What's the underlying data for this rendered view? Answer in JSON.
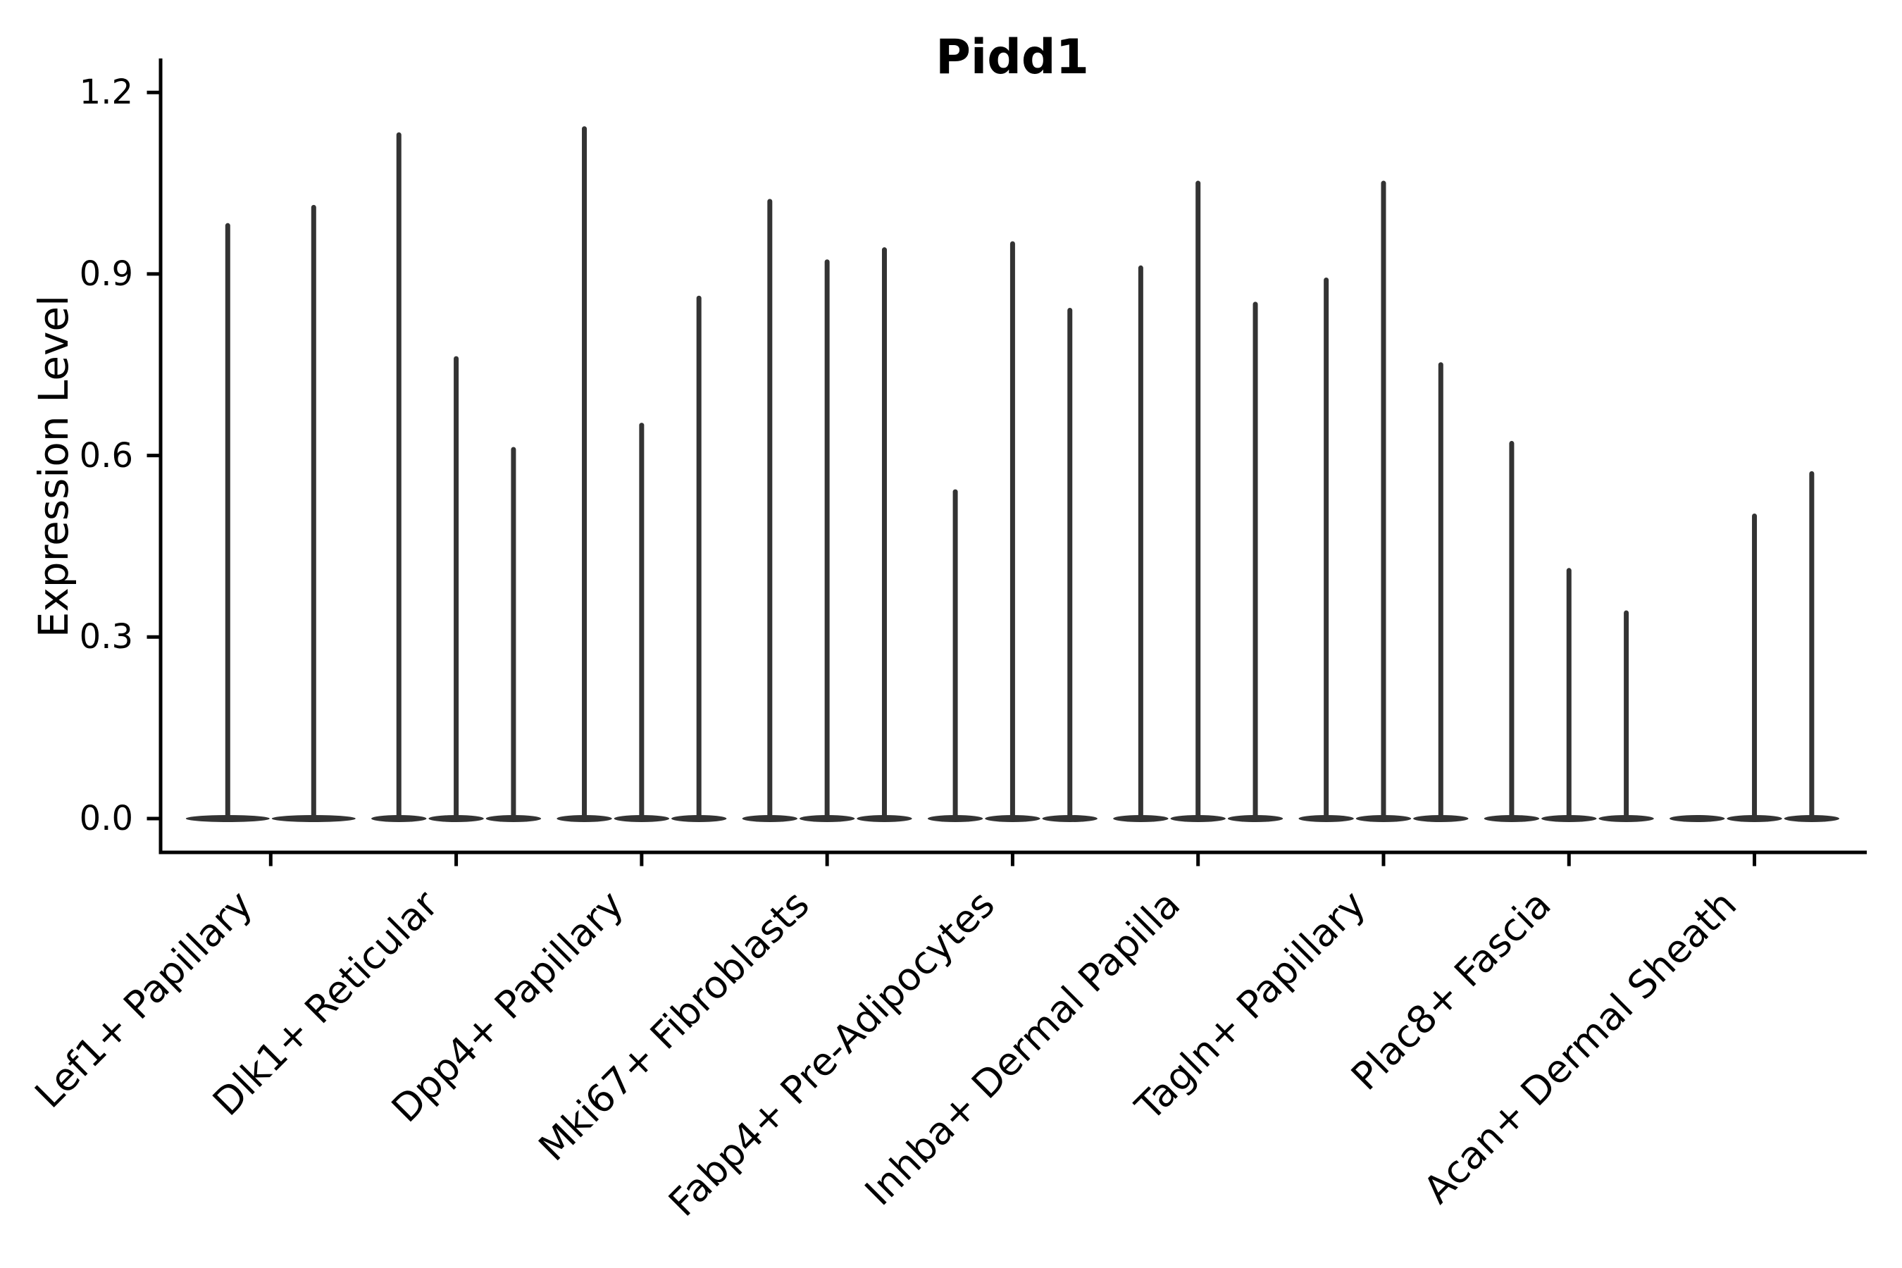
{
  "chart_data": {
    "type": "violin",
    "title": "Pidd1",
    "ylabel": "Expression Level",
    "xlabel": "",
    "grid": false,
    "legend": "none",
    "ylim": [
      -0.06,
      1.26
    ],
    "ytick_labels": [
      "0.0",
      "0.3",
      "0.6",
      "0.9",
      "1.2"
    ],
    "ytick_values": [
      0.0,
      0.3,
      0.6,
      0.9,
      1.2
    ],
    "categories": [
      "Lef1+ Papillary",
      "Dlk1+ Reticular",
      "Dpp4+ Papillary",
      "Mki67+ Fibroblasts",
      "Fabp4+ Pre-Adipocytes",
      "Inhba+ Dermal Papilla",
      "Tagln+ Papillary",
      "Plac8+ Fascia",
      "Acan+ Dermal Sheath"
    ],
    "violins_max_expression_per_category": [
      [
        0.98,
        1.01
      ],
      [
        1.13,
        0.76,
        0.61
      ],
      [
        1.14,
        0.65,
        0.86
      ],
      [
        1.02,
        0.92,
        0.94
      ],
      [
        0.54,
        0.95,
        0.84
      ],
      [
        0.91,
        1.05,
        0.85
      ],
      [
        0.89,
        1.05,
        0.75
      ],
      [
        0.62,
        0.41,
        0.34
      ],
      [
        0.0,
        0.5,
        0.57
      ]
    ],
    "violin_color": "#333333",
    "axis_color": "#000000"
  }
}
